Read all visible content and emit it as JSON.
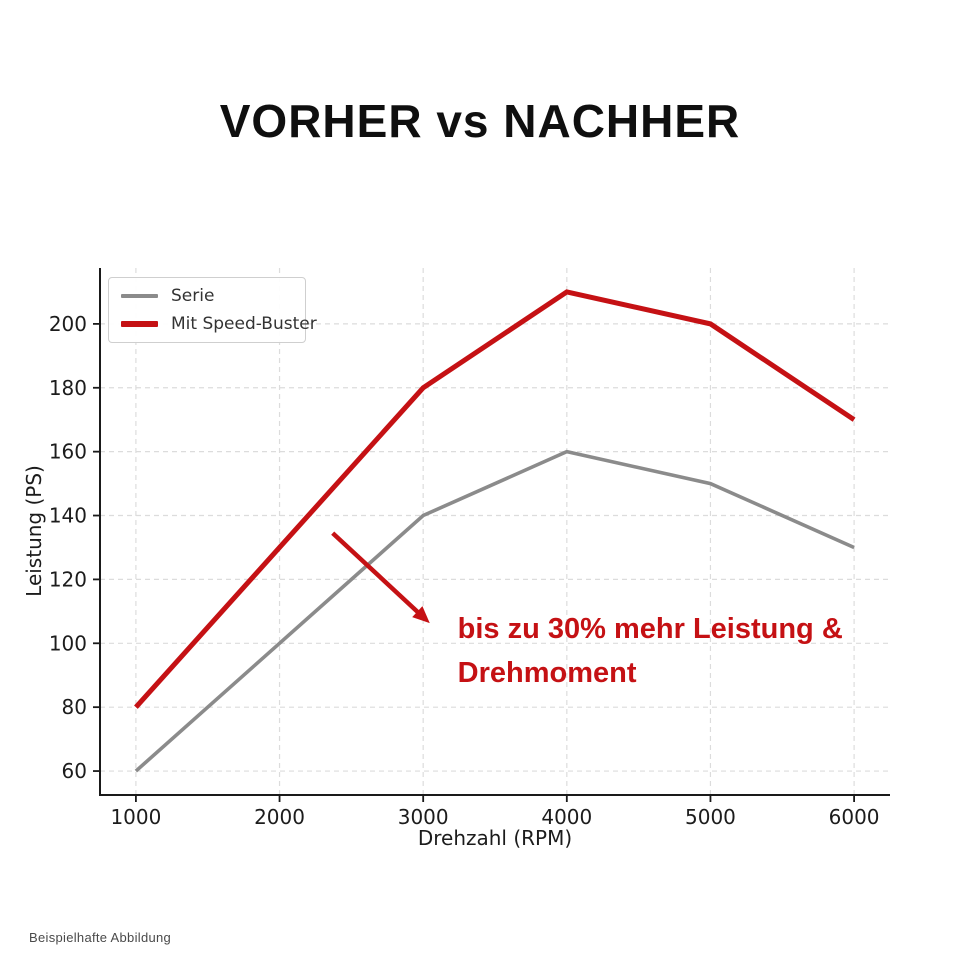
{
  "page": {
    "title": "VORHER vs NACHHER",
    "footer_note": "Beispielhafte Abbildung"
  },
  "chart_data": {
    "type": "line",
    "title": "VORHER vs NACHHER",
    "x": [
      1000,
      2000,
      3000,
      4000,
      5000,
      6000
    ],
    "series": [
      {
        "name": "Serie",
        "values": [
          60,
          100,
          140,
          160,
          150,
          130
        ],
        "color": "#8b8b8b",
        "width": 3.6
      },
      {
        "name": "Mit Speed-Buster",
        "values": [
          80,
          130,
          180,
          210,
          200,
          170
        ],
        "color": "#c51114",
        "width": 5
      }
    ],
    "xlabel": "Drehzahl (RPM)",
    "ylabel": "Leistung (PS)",
    "xlim": [
      750,
      6250
    ],
    "ylim": [
      52.5,
      217.5
    ],
    "xticks": [
      1000,
      2000,
      3000,
      4000,
      5000,
      6000
    ],
    "yticks": [
      60,
      80,
      100,
      120,
      140,
      160,
      180,
      200
    ],
    "grid": true,
    "grid_color": "#dcdcdc",
    "spine_color": "#1a1a1a",
    "legend_position": "upper-left",
    "annotation": {
      "text_line1": "bis zu 30% mehr Leistung &",
      "text_line2": "Drehmoment",
      "color": "#c51114",
      "arrow_from_xy": [
        2370,
        134.5
      ],
      "arrow_to_xy": [
        3005,
        108
      ],
      "text_xy": [
        3240,
        111.5
      ]
    }
  }
}
